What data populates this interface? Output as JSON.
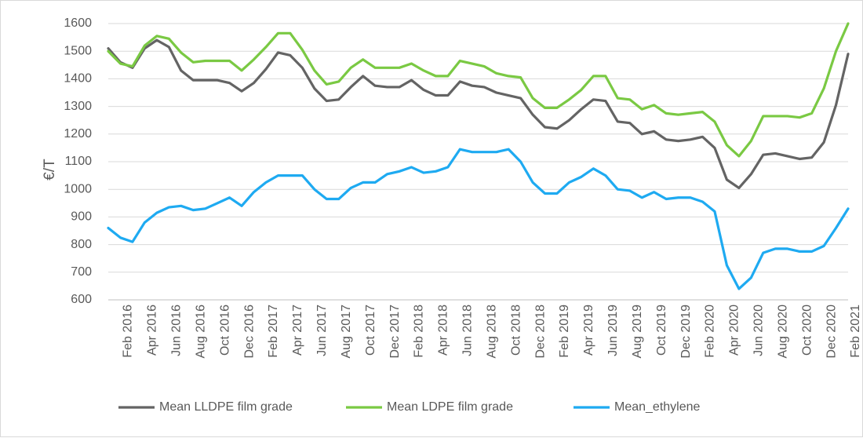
{
  "chart_data": {
    "type": "line",
    "title": "",
    "xlabel": "",
    "ylabel": "€/T",
    "ylim": [
      600,
      1600
    ],
    "yticks": [
      600,
      700,
      800,
      900,
      1000,
      1100,
      1200,
      1300,
      1400,
      1500,
      1600
    ],
    "grid": "horizontal",
    "legend_position": "bottom",
    "x": [
      "Jan 2016",
      "Feb 2016",
      "Mar 2016",
      "Apr 2016",
      "May 2016",
      "Jun 2016",
      "Jul 2016",
      "Aug 2016",
      "Sep 2016",
      "Oct 2016",
      "Nov 2016",
      "Dec 2016",
      "Jan 2017",
      "Feb 2017",
      "Mar 2017",
      "Apr 2017",
      "May 2017",
      "Jun 2017",
      "Jul 2017",
      "Aug 2017",
      "Sep 2017",
      "Oct 2017",
      "Nov 2017",
      "Dec 2017",
      "Jan 2018",
      "Feb 2018",
      "Mar 2018",
      "Apr 2018",
      "May 2018",
      "Jun 2018",
      "Jul 2018",
      "Aug 2018",
      "Sep 2018",
      "Oct 2018",
      "Nov 2018",
      "Dec 2018",
      "Jan 2019",
      "Feb 2019",
      "Mar 2019",
      "Apr 2019",
      "May 2019",
      "Jun 2019",
      "Jul 2019",
      "Aug 2019",
      "Sep 2019",
      "Oct 2019",
      "Nov 2019",
      "Dec 2019",
      "Jan 2020",
      "Feb 2020",
      "Mar 2020",
      "Apr 2020",
      "May 2020",
      "Jun 2020",
      "Jul 2020",
      "Aug 2020",
      "Sep 2020",
      "Oct 2020",
      "Nov 2020",
      "Dec 2020",
      "Jan 2021",
      "Feb 2021"
    ],
    "x_tick_labels": [
      "Feb 2016",
      "Apr 2016",
      "Jun 2016",
      "Aug 2016",
      "Oct 2016",
      "Dec 2016",
      "Feb 2017",
      "Apr 2017",
      "Jun 2017",
      "Aug 2017",
      "Oct 2017",
      "Dec 2017",
      "Feb 2018",
      "Apr 2018",
      "Jun 2018",
      "Aug 2018",
      "Oct 2018",
      "Dec 2018",
      "Feb 2019",
      "Apr 2019",
      "Jun 2019",
      "Aug 2019",
      "Oct 2019",
      "Dec 2019",
      "Feb 2020",
      "Apr 2020",
      "Jun 2020",
      "Aug 2020",
      "Oct 2020",
      "Dec 2020",
      "Feb 2021"
    ],
    "series": [
      {
        "name": "Mean LLDPE film grade",
        "color": "#646464",
        "values": [
          1510,
          1460,
          1440,
          1510,
          1540,
          1515,
          1430,
          1395,
          1395,
          1395,
          1385,
          1355,
          1385,
          1435,
          1495,
          1485,
          1440,
          1365,
          1320,
          1325,
          1370,
          1410,
          1375,
          1370,
          1370,
          1395,
          1360,
          1340,
          1340,
          1390,
          1375,
          1370,
          1350,
          1340,
          1330,
          1270,
          1225,
          1220,
          1250,
          1290,
          1325,
          1320,
          1245,
          1240,
          1200,
          1210,
          1180,
          1175,
          1180,
          1190,
          1150,
          1035,
          1005,
          1055,
          1125,
          1130,
          1120,
          1110,
          1115,
          1170,
          1305,
          1490
        ]
      },
      {
        "name": "Mean LDPE film grade",
        "color": "#7ac943",
        "values": [
          1500,
          1455,
          1445,
          1520,
          1555,
          1545,
          1495,
          1460,
          1465,
          1465,
          1465,
          1430,
          1470,
          1515,
          1565,
          1565,
          1505,
          1430,
          1380,
          1390,
          1440,
          1470,
          1440,
          1440,
          1440,
          1455,
          1430,
          1410,
          1410,
          1465,
          1455,
          1445,
          1420,
          1410,
          1405,
          1330,
          1295,
          1295,
          1325,
          1360,
          1410,
          1410,
          1330,
          1325,
          1290,
          1305,
          1275,
          1270,
          1275,
          1280,
          1245,
          1160,
          1120,
          1175,
          1265,
          1265,
          1265,
          1260,
          1275,
          1365,
          1500,
          1600
        ]
      },
      {
        "name": "Mean_ethylene",
        "color": "#1eaaf1",
        "values": [
          860,
          825,
          810,
          880,
          915,
          935,
          940,
          925,
          930,
          950,
          970,
          940,
          990,
          1025,
          1050,
          1050,
          1050,
          1000,
          965,
          965,
          1005,
          1025,
          1025,
          1055,
          1065,
          1080,
          1060,
          1065,
          1080,
          1145,
          1135,
          1135,
          1135,
          1145,
          1100,
          1025,
          985,
          985,
          1025,
          1045,
          1075,
          1050,
          1000,
          995,
          970,
          990,
          965,
          970,
          970,
          955,
          920,
          725,
          640,
          680,
          770,
          785,
          785,
          775,
          775,
          795,
          860,
          930
        ]
      }
    ]
  }
}
